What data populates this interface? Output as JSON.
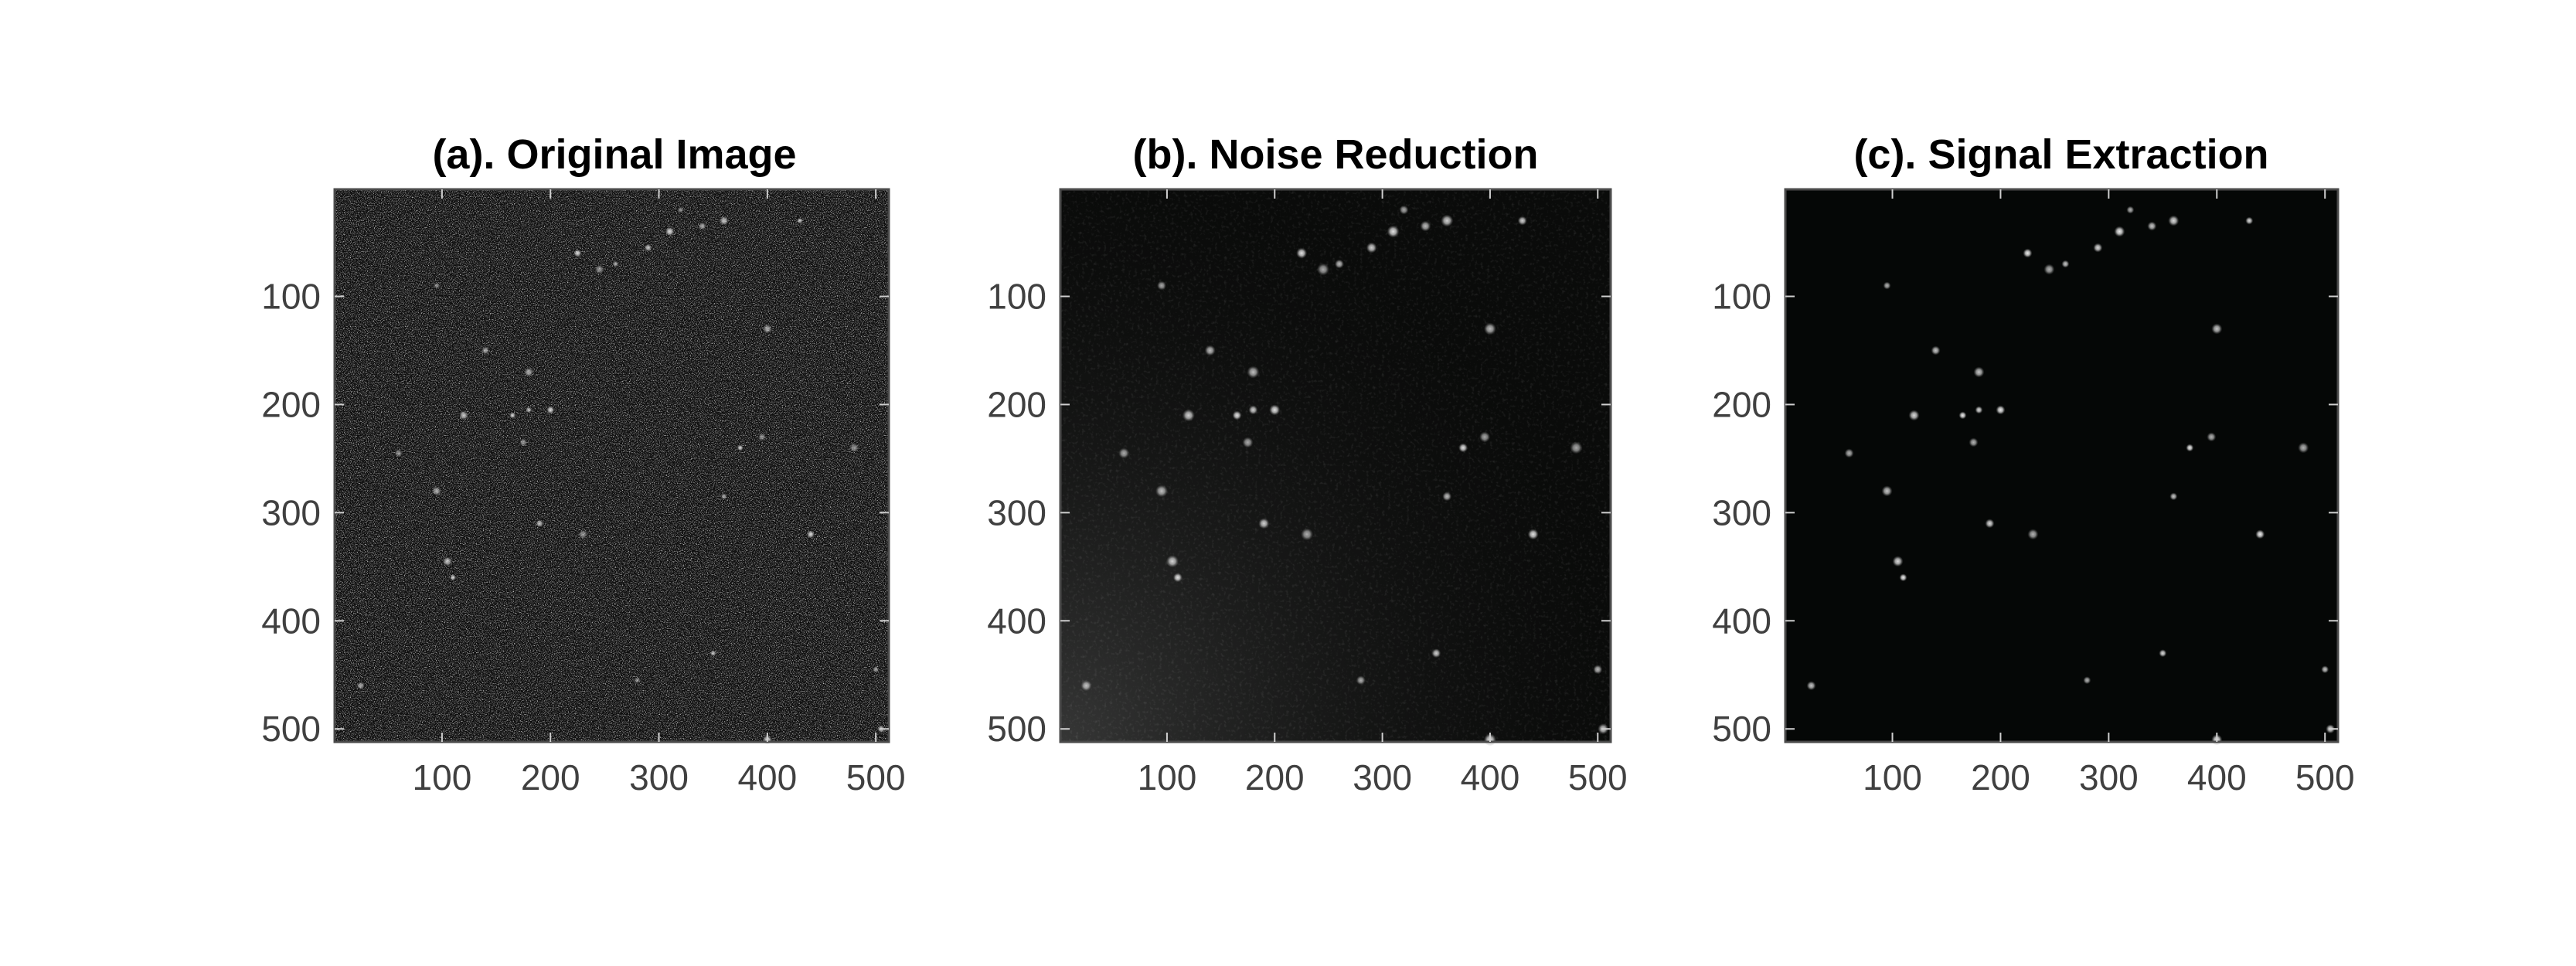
{
  "panels": [
    {
      "title": "(a). Original Image",
      "style": "noisy",
      "xticks": [
        "100",
        "200",
        "300",
        "400",
        "500"
      ],
      "yticks": [
        "100",
        "200",
        "300",
        "400",
        "500"
      ]
    },
    {
      "title": "(b). Noise Reduction",
      "style": "denoised",
      "xticks": [
        "100",
        "200",
        "300",
        "400",
        "500"
      ],
      "yticks": [
        "100",
        "200",
        "300",
        "400",
        "500"
      ]
    },
    {
      "title": "(c). Signal Extraction",
      "style": "extracted",
      "xticks": [
        "100",
        "200",
        "300",
        "400",
        "500"
      ],
      "yticks": [
        "100",
        "200",
        "300",
        "400",
        "500"
      ]
    }
  ],
  "axis_range": [
    1,
    512
  ],
  "spots": [
    [
      95,
      90
    ],
    [
      140,
      150
    ],
    [
      120,
      210
    ],
    [
      165,
      210
    ],
    [
      175,
      235
    ],
    [
      180,
      170
    ],
    [
      180,
      205
    ],
    [
      200,
      205
    ],
    [
      230,
      320
    ],
    [
      260,
      70
    ],
    [
      290,
      55
    ],
    [
      310,
      40
    ],
    [
      320,
      20
    ],
    [
      340,
      35
    ],
    [
      360,
      30
    ],
    [
      375,
      240
    ],
    [
      395,
      230
    ],
    [
      400,
      130
    ],
    [
      430,
      30
    ],
    [
      440,
      320
    ],
    [
      480,
      240
    ],
    [
      500,
      445
    ],
    [
      505,
      500
    ],
    [
      400,
      510
    ],
    [
      280,
      455
    ],
    [
      25,
      460
    ],
    [
      105,
      345
    ],
    [
      110,
      360
    ],
    [
      60,
      245
    ],
    [
      95,
      280
    ],
    [
      350,
      430
    ],
    [
      225,
      60
    ],
    [
      245,
      75
    ],
    [
      360,
      285
    ],
    [
      190,
      310
    ]
  ],
  "colors": {
    "background": "#0a0c0b",
    "spot": "#ffffff",
    "frame": "#4a4a4a"
  }
}
